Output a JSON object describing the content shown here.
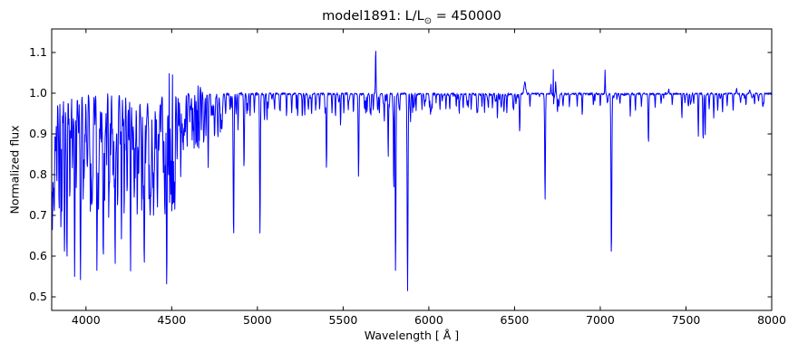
{
  "title": {
    "prefix": "model1891: L/L",
    "sun_symbol": "⊙",
    "suffix": " = 450000"
  },
  "axes": {
    "xlabel": "Wavelength [ Å ]",
    "ylabel": "Normalized flux"
  },
  "chart_data": {
    "type": "line",
    "title": "model1891: L/L⊙ = 450000",
    "xlabel": "Wavelength [ Å ]",
    "ylabel": "Normalized flux",
    "legend": null,
    "grid": false,
    "line_color": "#0000ff",
    "axis_color": "#000000",
    "background": "#ffffff",
    "xlim": [
      3800,
      8000
    ],
    "ylim": [
      0.4667,
      1.1578
    ],
    "xticks": [
      4000,
      4500,
      5000,
      5500,
      6000,
      6500,
      7000,
      7500,
      8000
    ],
    "yticks": [
      0.5,
      0.6,
      0.7,
      0.8,
      0.9,
      1.0,
      1.1
    ],
    "continuum_flux": 1.0,
    "absorption_lines": [
      [
        3804,
        0.665,
        2.5
      ],
      [
        3819,
        0.9,
        1.8
      ],
      [
        3830,
        0.785,
        2.0
      ],
      [
        3843,
        0.905,
        1.8
      ],
      [
        3854,
        0.672,
        2.5
      ],
      [
        3865,
        0.93,
        1.8
      ],
      [
        3875,
        0.615,
        2.5
      ],
      [
        3889,
        0.6,
        2.5
      ],
      [
        3900,
        0.925,
        1.8
      ],
      [
        3912,
        0.89,
        1.8
      ],
      [
        3922,
        0.855,
        1.8
      ],
      [
        3934,
        0.55,
        2.2
      ],
      [
        3946,
        0.93,
        1.8
      ],
      [
        3957,
        0.91,
        1.8
      ],
      [
        3968,
        0.545,
        2.5
      ],
      [
        3982,
        0.93,
        1.8
      ],
      [
        3995,
        0.885,
        1.8
      ],
      [
        4009,
        0.82,
        1.8
      ],
      [
        4026,
        0.71,
        2.2
      ],
      [
        4038,
        0.785,
        1.8
      ],
      [
        4052,
        0.93,
        1.8
      ],
      [
        4064,
        0.565,
        2.2
      ],
      [
        4077,
        0.855,
        1.8
      ],
      [
        4089,
        0.88,
        1.8
      ],
      [
        4101,
        0.605,
        2.8
      ],
      [
        4115,
        0.93,
        1.8
      ],
      [
        4121,
        0.825,
        1.8
      ],
      [
        4133,
        0.695,
        1.8
      ],
      [
        4144,
        0.855,
        1.8
      ],
      [
        4154,
        0.9,
        1.8
      ],
      [
        4170,
        0.582,
        2.2
      ],
      [
        4179,
        0.9,
        1.8
      ],
      [
        4186,
        0.845,
        1.8
      ],
      [
        4200,
        0.875,
        1.8
      ],
      [
        4207,
        0.645,
        2.2
      ],
      [
        4217,
        0.92,
        1.8
      ],
      [
        4227,
        0.86,
        1.8
      ],
      [
        4236,
        0.905,
        1.8
      ],
      [
        4250,
        0.885,
        1.8
      ],
      [
        4260,
        0.572,
        2.2
      ],
      [
        4272,
        0.865,
        1.8
      ],
      [
        4282,
        0.92,
        1.8
      ],
      [
        4290,
        0.89,
        1.8
      ],
      [
        4300,
        0.895,
        1.8
      ],
      [
        4310,
        0.935,
        1.8
      ],
      [
        4326,
        0.765,
        1.8
      ],
      [
        4340,
        0.585,
        2.8
      ],
      [
        4352,
        0.915,
        1.8
      ],
      [
        4364,
        0.925,
        1.8
      ],
      [
        4371,
        0.775,
        1.8
      ],
      [
        4381,
        0.94,
        1.8
      ],
      [
        4388,
        0.835,
        1.8
      ],
      [
        4400,
        0.87,
        1.8
      ],
      [
        4408,
        0.865,
        1.8
      ],
      [
        4420,
        0.935,
        1.8
      ],
      [
        4437,
        0.905,
        1.8
      ],
      [
        4455,
        0.885,
        1.8
      ],
      [
        4471,
        0.532,
        2.5
      ],
      [
        4481,
        0.8,
        1.8
      ],
      [
        4515,
        0.748,
        2.2
      ],
      [
        4530,
        0.885,
        1.8
      ],
      [
        4542,
        0.92,
        1.8
      ],
      [
        4553,
        0.795,
        1.8
      ],
      [
        4568,
        0.865,
        1.8
      ],
      [
        4580,
        0.905,
        1.8
      ],
      [
        4590,
        0.87,
        1.8
      ],
      [
        4606,
        0.93,
        1.8
      ],
      [
        4620,
        0.885,
        1.8
      ],
      [
        4630,
        0.865,
        1.8
      ],
      [
        4640,
        0.875,
        1.8
      ],
      [
        4650,
        0.87,
        1.8
      ],
      [
        4658,
        0.865,
        1.8
      ],
      [
        4673,
        0.91,
        1.8
      ],
      [
        4686,
        0.89,
        1.8
      ],
      [
        4700,
        0.9,
        1.8
      ],
      [
        4713,
        0.825,
        2.0
      ],
      [
        4731,
        0.945,
        1.8
      ],
      [
        4751,
        0.94,
        1.8
      ],
      [
        4790,
        0.945,
        1.8
      ],
      [
        4815,
        0.95,
        1.8
      ],
      [
        4840,
        0.96,
        1.8
      ],
      [
        4861,
        0.657,
        2.5
      ],
      [
        4887,
        0.91,
        1.8
      ],
      [
        4922,
        0.822,
        2.2
      ],
      [
        4938,
        0.95,
        1.8
      ],
      [
        4957,
        0.945,
        1.8
      ],
      [
        4982,
        0.955,
        1.8
      ],
      [
        5015,
        0.657,
        2.2
      ],
      [
        5041,
        0.935,
        1.8
      ],
      [
        5056,
        0.935,
        1.8
      ],
      [
        5100,
        0.962,
        1.8
      ],
      [
        5130,
        0.96,
        1.8
      ],
      [
        5170,
        0.945,
        1.8
      ],
      [
        5200,
        0.952,
        1.8
      ],
      [
        5235,
        0.945,
        1.8
      ],
      [
        5262,
        0.945,
        1.8
      ],
      [
        5276,
        0.948,
        1.8
      ],
      [
        5316,
        0.95,
        1.8
      ],
      [
        5340,
        0.96,
        1.8
      ],
      [
        5363,
        0.962,
        1.8
      ],
      [
        5403,
        0.818,
        2.2
      ],
      [
        5435,
        0.952,
        1.8
      ],
      [
        5455,
        0.945,
        1.8
      ],
      [
        5485,
        0.922,
        1.8
      ],
      [
        5530,
        0.96,
        1.8
      ],
      [
        5560,
        0.955,
        1.8
      ],
      [
        5590,
        0.798,
        2.2
      ],
      [
        5625,
        0.962,
        1.8
      ],
      [
        5640,
        0.955,
        1.8
      ],
      [
        5662,
        0.948,
        1.8
      ],
      [
        5676,
        0.96,
        1.8
      ],
      [
        5711,
        0.952,
        1.8
      ],
      [
        5740,
        0.932,
        1.8
      ],
      [
        5763,
        0.845,
        1.8
      ],
      [
        5795,
        0.77,
        1.8
      ],
      [
        5806,
        0.565,
        2.2
      ],
      [
        5830,
        0.962,
        1.8
      ],
      [
        5876,
        0.515,
        2.5
      ],
      [
        5893,
        0.93,
        1.8
      ],
      [
        5915,
        0.972,
        1.8
      ],
      [
        5960,
        0.965,
        1.8
      ],
      [
        6004,
        0.968,
        1.8
      ],
      [
        6065,
        0.962,
        1.8
      ],
      [
        6100,
        0.962,
        1.8
      ],
      [
        6122,
        0.962,
        1.8
      ],
      [
        6160,
        0.968,
        1.8
      ],
      [
        6200,
        0.965,
        1.8
      ],
      [
        6230,
        0.968,
        1.8
      ],
      [
        6247,
        0.962,
        1.8
      ],
      [
        6280,
        0.962,
        1.8
      ],
      [
        6310,
        0.97,
        1.8
      ],
      [
        6347,
        0.965,
        1.8
      ],
      [
        6371,
        0.968,
        1.8
      ],
      [
        6400,
        0.942,
        1.8
      ],
      [
        6455,
        0.952,
        1.8
      ],
      [
        6495,
        0.962,
        1.8
      ],
      [
        6530,
        0.908,
        2.2
      ],
      [
        6590,
        0.968,
        1.8
      ],
      [
        6678,
        0.74,
        2.2
      ],
      [
        6750,
        0.955,
        1.8
      ],
      [
        6820,
        0.97,
        1.8
      ],
      [
        6895,
        0.948,
        1.8
      ],
      [
        6960,
        0.972,
        1.8
      ],
      [
        7000,
        0.97,
        1.8
      ],
      [
        7065,
        0.612,
        2.5
      ],
      [
        7115,
        0.975,
        1.8
      ],
      [
        7175,
        0.945,
        1.8
      ],
      [
        7205,
        0.958,
        1.8
      ],
      [
        7240,
        0.97,
        1.8
      ],
      [
        7281,
        0.882,
        2.2
      ],
      [
        7320,
        0.968,
        1.8
      ],
      [
        7355,
        0.975,
        1.8
      ],
      [
        7420,
        0.972,
        1.8
      ],
      [
        7476,
        0.94,
        1.8
      ],
      [
        7515,
        0.972,
        1.8
      ],
      [
        7545,
        0.975,
        1.8
      ],
      [
        7572,
        0.895,
        1.8
      ],
      [
        7600,
        0.89,
        2.2
      ],
      [
        7612,
        0.898,
        1.8
      ],
      [
        7635,
        0.962,
        1.8
      ],
      [
        7662,
        0.94,
        1.8
      ],
      [
        7685,
        0.958,
        1.8
      ],
      [
        7713,
        0.955,
        1.8
      ],
      [
        7740,
        0.972,
        1.8
      ],
      [
        7775,
        0.958,
        1.8
      ],
      [
        7850,
        0.972,
        1.8
      ],
      [
        7900,
        0.975,
        1.8
      ],
      [
        7950,
        0.972,
        1.8
      ]
    ],
    "emission_lines": [
      [
        4486,
        1.048,
        1.5
      ],
      [
        4504,
        1.045,
        1.5
      ],
      [
        4646,
        1.046,
        16
      ],
      [
        5690,
        1.103,
        1.8
      ],
      [
        6560,
        1.028,
        5
      ],
      [
        6712,
        1.022,
        1.5
      ],
      [
        6727,
        1.058,
        1.5
      ],
      [
        6740,
        1.028,
        1.5
      ],
      [
        7028,
        1.057,
        1.5
      ],
      [
        7400,
        1.01,
        2.5
      ],
      [
        7795,
        1.012,
        2.5
      ],
      [
        7872,
        1.008,
        2.5
      ]
    ],
    "noise_regions": [
      [
        3800,
        4500,
        0.016
      ],
      [
        4500,
        4800,
        0.009
      ],
      [
        4800,
        5900,
        0.004
      ],
      [
        5900,
        6520,
        0.0055
      ],
      [
        6520,
        8000,
        0.0035
      ]
    ],
    "microline_groups": [
      [
        3800,
        4550,
        130,
        0.02,
        0.3
      ],
      [
        4550,
        4800,
        30,
        0.02,
        0.12
      ],
      [
        4800,
        5900,
        35,
        0.01,
        0.05
      ],
      [
        5900,
        6520,
        32,
        0.01,
        0.05
      ],
      [
        6520,
        8000,
        28,
        0.006,
        0.03
      ]
    ],
    "seed": 42
  }
}
